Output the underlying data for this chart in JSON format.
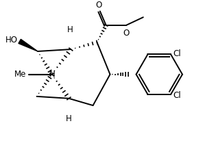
{
  "background_color": "#ffffff",
  "line_color": "#000000",
  "line_width": 1.4,
  "figsize": [
    3.12,
    2.06
  ],
  "dpi": 100,
  "xlim": [
    0,
    10
  ],
  "ylim": [
    0,
    6.6
  ]
}
